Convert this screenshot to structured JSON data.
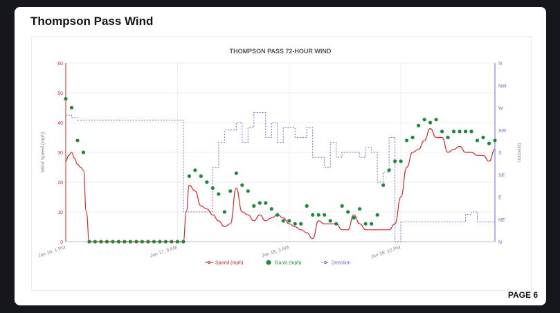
{
  "page": {
    "title": "Thompson Pass Wind",
    "page_label": "PAGE 6"
  },
  "colors": {
    "speed": "#d62728",
    "gusts": "#1a8a3a",
    "direction": "#6a6ad0"
  },
  "chart_data": {
    "type": "line",
    "title": "THOMPSON PASS 72-HOUR WIND",
    "ylabel": "Wind Speed (mph)",
    "y2label": "Direction",
    "ylim": [
      0,
      60
    ],
    "yticks": [
      "0",
      "10",
      "20",
      "30",
      "40",
      "50",
      "60"
    ],
    "y2ticks": [
      "N",
      "NE",
      "E",
      "SE",
      "S",
      "SW",
      "W",
      "NW",
      "N"
    ],
    "xlim": [
      0,
      73
    ],
    "xticks": [
      {
        "x": 0,
        "label": "Jan 16, 1 PM"
      },
      {
        "x": 19,
        "label": "Jan 17, 8 AM"
      },
      {
        "x": 38,
        "label": "Jan 18, 3 AM"
      },
      {
        "x": 57,
        "label": "Jan 18, 10 PM"
      }
    ],
    "grid": true,
    "legend_position": "bottom",
    "legend": [
      "Speed (mph)",
      "Gusts (mph)",
      "Direction"
    ],
    "series": [
      {
        "name": "Speed (mph)",
        "style": "line",
        "x": [
          0,
          0.5,
          1,
          1.5,
          2,
          2.5,
          3,
          3.5,
          4,
          5,
          10,
          15,
          20,
          20.5,
          21,
          22,
          23,
          24,
          25,
          26,
          27,
          28,
          29,
          30,
          31,
          32,
          33,
          34,
          35,
          36,
          37,
          38,
          39,
          40,
          41,
          42,
          43,
          44,
          45,
          46,
          47,
          48,
          49,
          50,
          51,
          52,
          53,
          54,
          55,
          56,
          57,
          58,
          59,
          60,
          61,
          62,
          63,
          64,
          65,
          66,
          67,
          68,
          69,
          70,
          71,
          72,
          73
        ],
        "y": [
          27,
          29,
          30,
          28,
          26,
          25,
          24,
          10,
          0,
          0,
          0,
          0,
          0,
          10,
          19,
          17,
          12,
          11,
          9,
          7,
          5,
          6,
          18,
          10,
          9,
          7,
          9,
          7,
          8,
          9,
          8,
          6,
          5,
          4,
          3,
          1,
          7,
          6,
          6,
          6,
          4,
          4,
          9,
          6,
          4,
          4,
          4,
          4,
          4,
          6,
          15,
          25,
          30,
          31,
          34,
          38,
          35,
          35,
          30,
          31,
          32,
          30,
          30,
          29,
          29,
          27,
          31
        ]
      },
      {
        "name": "Gusts (mph)",
        "style": "dots",
        "x": [
          0,
          1,
          2,
          3,
          4,
          5,
          6,
          7,
          8,
          9,
          10,
          11,
          12,
          13,
          14,
          15,
          16,
          17,
          18,
          19,
          20,
          21,
          22,
          23,
          24,
          25,
          26,
          27,
          28,
          29,
          30,
          31,
          32,
          33,
          34,
          35,
          36,
          37,
          38,
          39,
          40,
          41,
          42,
          43,
          44,
          45,
          46,
          47,
          48,
          49,
          50,
          51,
          52,
          53,
          54,
          55,
          56,
          57,
          58,
          59,
          60,
          61,
          62,
          63,
          64,
          65,
          66,
          67,
          68,
          69,
          70,
          71,
          72,
          73
        ],
        "y": [
          48,
          45,
          34,
          30,
          0,
          0,
          0,
          0,
          0,
          0,
          0,
          0,
          0,
          0,
          0,
          0,
          0,
          0,
          0,
          0,
          0,
          22,
          24,
          22,
          20,
          18,
          16,
          10,
          17,
          23,
          19,
          17,
          12,
          13,
          13,
          11,
          9,
          7,
          7,
          6,
          6,
          12,
          9,
          9,
          9,
          7,
          6,
          12,
          10,
          8,
          11,
          6,
          6,
          9,
          19,
          24,
          27,
          27,
          34,
          35,
          39,
          41,
          40,
          41,
          37,
          35,
          37,
          37,
          37,
          37,
          34,
          35,
          33,
          34
        ]
      },
      {
        "name": "Direction",
        "style": "dashed-step",
        "x": [
          0,
          1,
          2,
          3,
          4,
          20,
          21,
          22,
          24,
          25,
          26,
          27,
          28,
          29,
          30,
          31,
          32,
          33,
          34,
          35,
          36,
          37,
          38,
          39,
          40,
          41,
          42,
          43,
          44,
          45,
          46,
          47,
          48,
          49,
          50,
          51,
          52,
          53,
          54,
          55,
          56,
          57,
          58,
          59,
          60,
          61,
          62,
          63,
          64,
          65,
          66,
          67,
          68,
          69,
          70,
          71,
          72,
          73
        ],
        "y": [
          255,
          250,
          245,
          245,
          245,
          60,
          60,
          60,
          60,
          150,
          200,
          225,
          225,
          240,
          200,
          230,
          260,
          260,
          210,
          240,
          200,
          230,
          230,
          210,
          210,
          230,
          170,
          170,
          150,
          200,
          170,
          180,
          180,
          180,
          170,
          190,
          180,
          120,
          140,
          210,
          0,
          40,
          40,
          40,
          40,
          40,
          40,
          40,
          40,
          40,
          40,
          40,
          55,
          60,
          40,
          40,
          40,
          40
        ]
      }
    ]
  }
}
